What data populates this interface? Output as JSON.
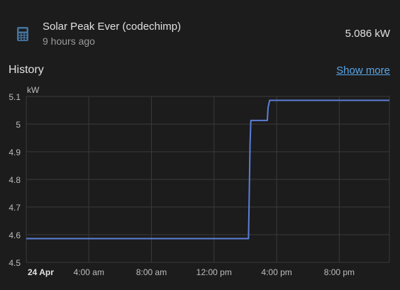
{
  "entity": {
    "name": "Solar Peak Ever (codechimp)",
    "last_changed": "9 hours ago",
    "value": "5.086 kW",
    "icon": "calculator-icon"
  },
  "history": {
    "title": "History",
    "show_more": "Show more"
  },
  "colors": {
    "background": "#1c1c1c",
    "line": "#5b7fd8",
    "grid": "#3a3a3a",
    "link": "#5aa6e8"
  },
  "chart_data": {
    "type": "line",
    "ylabel": "kW",
    "ylim": [
      4.5,
      5.1
    ],
    "yticks": [
      "4.5",
      "4.6",
      "4.7",
      "4.8",
      "4.9",
      "5",
      "5.1"
    ],
    "xlim_hours": [
      0,
      23.2
    ],
    "xticks": [
      {
        "label": "24 Apr",
        "hour": 0,
        "bold": true
      },
      {
        "label": "4:00 am",
        "hour": 4
      },
      {
        "label": "8:00 am",
        "hour": 8
      },
      {
        "label": "12:00 pm",
        "hour": 12
      },
      {
        "label": "4:00 pm",
        "hour": 16
      },
      {
        "label": "8:00 pm",
        "hour": 20
      }
    ],
    "series": [
      {
        "points": [
          [
            0,
            4.586
          ],
          [
            14.2,
            4.586
          ],
          [
            14.3,
            4.93
          ],
          [
            14.35,
            5.013
          ],
          [
            15.4,
            5.013
          ],
          [
            15.45,
            5.06
          ],
          [
            15.55,
            5.086
          ],
          [
            23.2,
            5.086
          ]
        ]
      }
    ]
  }
}
